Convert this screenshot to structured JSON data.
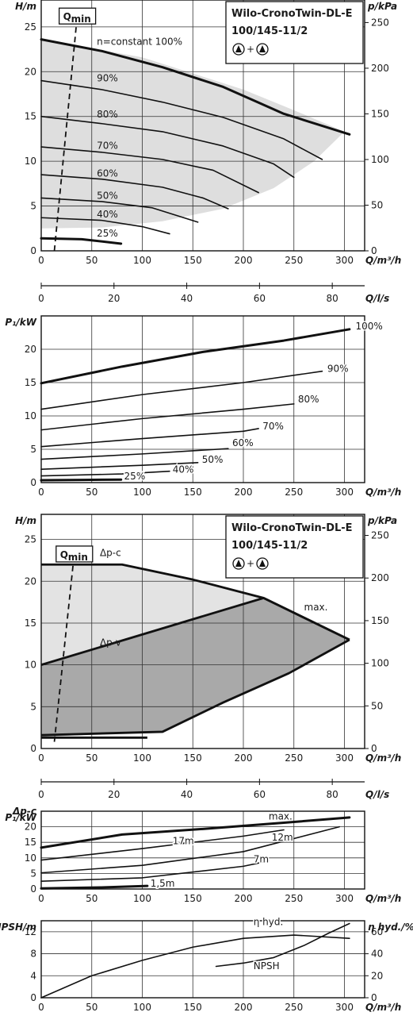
{
  "pump": {
    "title_line1": "Wilo-CronoTwin-DL-E",
    "title_line2": "100/145-11/2",
    "pump_symbol": "+"
  },
  "chart_data": [
    {
      "type": "line",
      "ylabel": "H/m",
      "y2label": "p/kPa",
      "xlabel": "Q/m³/h",
      "xlim": [
        0,
        320
      ],
      "ylim": [
        0,
        28
      ],
      "y2lim": [
        0,
        274.7
      ],
      "xticks": [
        0,
        50,
        100,
        150,
        200,
        250,
        300
      ],
      "yticks": [
        0,
        5,
        10,
        15,
        20,
        25
      ],
      "y2ticks": [
        0,
        50,
        100,
        150,
        200,
        250
      ],
      "qmin_label": "Q",
      "qmin_sub": "min",
      "qmin_line": [
        [
          13,
          0
        ],
        [
          35,
          25.5
        ]
      ],
      "operating_area": [
        [
          0,
          23.6
        ],
        [
          50,
          22.6
        ],
        [
          100,
          21.6
        ],
        [
          150,
          19.8
        ],
        [
          200,
          18
        ],
        [
          250,
          15.7
        ],
        [
          300,
          13.3
        ],
        [
          270,
          10
        ],
        [
          230,
          7
        ],
        [
          180,
          4.7
        ],
        [
          120,
          3.3
        ],
        [
          60,
          2.6
        ],
        [
          0,
          2.5
        ]
      ],
      "series": [
        {
          "name": "n=constant 100%",
          "x": [
            0,
            60,
            120,
            180,
            240,
            305
          ],
          "y": [
            23.6,
            22.3,
            20.5,
            18.3,
            15.3,
            13
          ],
          "bold": true
        },
        {
          "name": "90%",
          "x": [
            0,
            60,
            120,
            180,
            240,
            278
          ],
          "y": [
            19,
            18,
            16.6,
            14.9,
            12.5,
            10.2
          ]
        },
        {
          "name": "80%",
          "x": [
            0,
            60,
            120,
            180,
            230,
            250
          ],
          "y": [
            15,
            14.2,
            13.3,
            11.7,
            9.7,
            8.2
          ]
        },
        {
          "name": "70%",
          "x": [
            0,
            60,
            120,
            170,
            215
          ],
          "y": [
            11.6,
            11,
            10.2,
            9,
            6.5
          ]
        },
        {
          "name": "60%",
          "x": [
            0,
            60,
            120,
            160,
            185
          ],
          "y": [
            8.5,
            8,
            7.1,
            5.9,
            4.7
          ]
        },
        {
          "name": "50%",
          "x": [
            0,
            60,
            110,
            155
          ],
          "y": [
            5.9,
            5.5,
            4.8,
            3.2
          ]
        },
        {
          "name": "40%",
          "x": [
            0,
            60,
            100,
            127
          ],
          "y": [
            3.7,
            3.4,
            2.7,
            1.9
          ]
        },
        {
          "name": "25%",
          "x": [
            0,
            40,
            79
          ],
          "y": [
            1.4,
            1.3,
            0.8
          ],
          "bold": true
        }
      ],
      "labels": [
        {
          "text": "n=constant 100%",
          "x": 55,
          "y": 23
        },
        {
          "text": "90%",
          "x": 55,
          "y": 18.9
        },
        {
          "text": "80%",
          "x": 55,
          "y": 14.9
        },
        {
          "text": "70%",
          "x": 55,
          "y": 11.4
        },
        {
          "text": "60%",
          "x": 55,
          "y": 8.3
        },
        {
          "text": "50%",
          "x": 55,
          "y": 5.8
        },
        {
          "text": "40%",
          "x": 55,
          "y": 3.7
        },
        {
          "text": "25%",
          "x": 55,
          "y": 1.6
        }
      ]
    },
    {
      "type": "axis",
      "xlabel": "Q/l/s",
      "xlim": [
        0,
        88.9
      ],
      "xticks": [
        0,
        20,
        40,
        60,
        80
      ]
    },
    {
      "type": "line",
      "ylabel": "P₁/kW",
      "xlabel": "Q/m³/h",
      "xlim": [
        0,
        320
      ],
      "ylim": [
        0,
        25
      ],
      "xticks": [
        0,
        50,
        100,
        150,
        200,
        250,
        300
      ],
      "yticks": [
        0,
        5,
        10,
        15,
        20
      ],
      "series": [
        {
          "name": "100%",
          "x": [
            0,
            80,
            160,
            240,
            305
          ],
          "y": [
            14.9,
            17.4,
            19.6,
            21.3,
            23
          ],
          "bold": true
        },
        {
          "name": "90%",
          "x": [
            0,
            100,
            200,
            278
          ],
          "y": [
            11,
            13.2,
            15,
            16.7
          ]
        },
        {
          "name": "80%",
          "x": [
            0,
            100,
            200,
            250
          ],
          "y": [
            7.9,
            9.6,
            11,
            11.8
          ]
        },
        {
          "name": "70%",
          "x": [
            0,
            100,
            200,
            215
          ],
          "y": [
            5.4,
            6.6,
            7.7,
            8.1
          ]
        },
        {
          "name": "60%",
          "x": [
            0,
            100,
            185
          ],
          "y": [
            3.5,
            4.3,
            5.1
          ]
        },
        {
          "name": "50%",
          "x": [
            0,
            100,
            155
          ],
          "y": [
            2,
            2.6,
            3
          ]
        },
        {
          "name": "40%",
          "x": [
            0,
            80,
            127
          ],
          "y": [
            1,
            1.3,
            1.7
          ]
        },
        {
          "name": "25%",
          "x": [
            0,
            40,
            79
          ],
          "y": [
            0.35,
            0.4,
            0.45
          ],
          "bold": true
        }
      ],
      "labels": [
        {
          "text": "100%",
          "x": 311,
          "y": 23
        },
        {
          "text": "90%",
          "x": 283,
          "y": 16.6
        },
        {
          "text": "80%",
          "x": 254,
          "y": 12
        },
        {
          "text": "70%",
          "x": 219,
          "y": 8
        },
        {
          "text": "60%",
          "x": 189,
          "y": 5.5
        },
        {
          "text": "50%",
          "x": 159,
          "y": 3
        },
        {
          "text": "40%",
          "x": 130,
          "y": 1.5
        },
        {
          "text": "25%",
          "x": 82,
          "y": 0.5
        }
      ]
    },
    {
      "type": "area",
      "ylabel": "H/m",
      "y2label": "p/kPa",
      "xlabel": "Q/m³/h",
      "xlim": [
        0,
        320
      ],
      "ylim": [
        0,
        28
      ],
      "y2lim": [
        0,
        274.7
      ],
      "xticks": [
        0,
        50,
        100,
        150,
        200,
        250,
        300
      ],
      "yticks": [
        0,
        5,
        10,
        15,
        20,
        25
      ],
      "y2ticks": [
        0,
        50,
        100,
        150,
        200,
        250
      ],
      "qmin_label": "Q",
      "qmin_sub": "min",
      "qmin_line": [
        [
          13,
          0.8
        ],
        [
          32,
          22.5
        ]
      ],
      "light_area": [
        [
          0,
          22
        ],
        [
          80,
          22
        ],
        [
          150,
          20.2
        ],
        [
          220,
          18
        ],
        [
          305,
          13
        ],
        [
          220,
          18
        ],
        [
          0,
          10
        ]
      ],
      "dark_area": [
        [
          0,
          10
        ],
        [
          220,
          18
        ],
        [
          305,
          13
        ],
        [
          245,
          9
        ],
        [
          180,
          5.5
        ],
        [
          120,
          2
        ],
        [
          0,
          1.4
        ]
      ],
      "dp_c": {
        "x": [
          0,
          80,
          150,
          220,
          305
        ],
        "y": [
          22,
          22,
          20.2,
          18,
          13
        ]
      },
      "dp_v": {
        "x": [
          0,
          220
        ],
        "y": [
          10,
          18
        ]
      },
      "max_line": {
        "x": [
          220,
          305
        ],
        "y": [
          18,
          13
        ]
      },
      "bottom_curve": {
        "x": [
          0,
          120,
          180,
          245,
          305
        ],
        "y": [
          1.6,
          2,
          5.5,
          9,
          13
        ]
      },
      "min_curve": {
        "x": [
          0,
          105
        ],
        "y": [
          1.3,
          1.3
        ]
      },
      "labels": [
        {
          "text": "Δp-c",
          "x": 58,
          "y": 23
        },
        {
          "text": "Δp-v",
          "x": 58,
          "y": 12.3
        },
        {
          "text": "max.",
          "x": 260,
          "y": 16.5
        }
      ]
    },
    {
      "type": "axis",
      "xlabel": "Q/l/s",
      "xlim": [
        0,
        88.9
      ],
      "xticks": [
        0,
        20,
        40,
        60,
        80
      ]
    },
    {
      "type": "line",
      "ylabel": "P₁/kW",
      "ylabel_top": "Δp-c",
      "xlabel": "Q/m³/h",
      "xlim": [
        0,
        320
      ],
      "ylim": [
        0,
        25
      ],
      "xticks": [
        0,
        50,
        100,
        150,
        200,
        250,
        300
      ],
      "yticks": [
        0,
        5,
        10,
        15,
        20
      ],
      "series": [
        {
          "name": "max.",
          "x": [
            0,
            80,
            160,
            240,
            305
          ],
          "y": [
            13.3,
            17.5,
            19.3,
            21.3,
            23
          ],
          "bold": true
        },
        {
          "name": "17m",
          "x": [
            0,
            100,
            200,
            240
          ],
          "y": [
            9.3,
            13,
            17,
            19
          ]
        },
        {
          "name": "12m",
          "x": [
            0,
            100,
            200,
            295
          ],
          "y": [
            5.2,
            7.6,
            12,
            20
          ]
        },
        {
          "name": "7m",
          "x": [
            0,
            100,
            200,
            225
          ],
          "y": [
            2.5,
            3.6,
            7.3,
            9
          ]
        },
        {
          "name": "1,5m",
          "x": [
            0,
            60,
            105
          ],
          "y": [
            0.2,
            0.5,
            1
          ],
          "bold": true
        }
      ],
      "labels": [
        {
          "text": "max.",
          "x": 225,
          "y": 22.3
        },
        {
          "text": "17m",
          "x": 130,
          "y": 14.4
        },
        {
          "text": "12m",
          "x": 228,
          "y": 15.5
        },
        {
          "text": "7m",
          "x": 210,
          "y": 8.5
        },
        {
          "text": "1,5m",
          "x": 108,
          "y": 0.8
        }
      ]
    },
    {
      "type": "line",
      "ylabel": "NPSH/m",
      "y2label": "η hyd./%",
      "xlabel": "Q/m³/h",
      "xlim": [
        0,
        320
      ],
      "ylim": [
        0,
        14
      ],
      "y2lim": [
        0,
        70
      ],
      "xticks": [
        0,
        50,
        100,
        150,
        200,
        250,
        300
      ],
      "yticks": [
        0,
        4,
        8,
        12
      ],
      "y2ticks": [
        0,
        20,
        40,
        60
      ],
      "series": [
        {
          "name": "η hyd.",
          "axis": "right",
          "x": [
            0,
            50,
            100,
            150,
            200,
            250,
            305
          ],
          "y": [
            0,
            20,
            34,
            46,
            54,
            57,
            54
          ]
        },
        {
          "name": "NPSH",
          "axis": "left",
          "x": [
            173,
            200,
            230,
            260,
            285,
            305
          ],
          "y": [
            5.7,
            6.3,
            7.3,
            9.5,
            11.8,
            13.5
          ]
        }
      ],
      "labels": [
        {
          "text": "η hyd.",
          "x": 210,
          "y": 13.2
        },
        {
          "text": "NPSH",
          "x": 210,
          "y": 5.2
        }
      ]
    }
  ]
}
